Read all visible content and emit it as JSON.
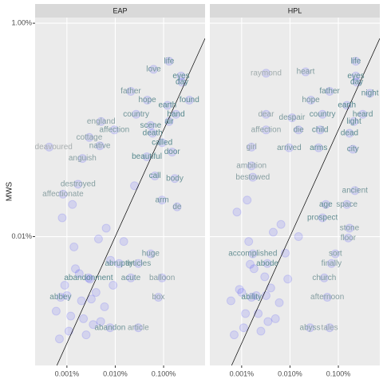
{
  "chart_data": {
    "type": "scatter",
    "y_label": "MWS",
    "log_x": true,
    "log_y": true,
    "grid": true,
    "identity_line": true,
    "point_color": "#0000ff",
    "label_colors": {
      "low": "#52868b",
      "high": "#b5b5b5"
    },
    "xlim": [
      0.00022,
      0.72
    ],
    "ylim": [
      0.00062,
      1.13
    ],
    "xticks": [
      {
        "value": 0.001,
        "label": "0.001%"
      },
      {
        "value": 0.01,
        "label": "0.010%"
      },
      {
        "value": 0.1,
        "label": "0.100%"
      }
    ],
    "yticks": [
      {
        "value": 0.01,
        "label": "0.01%"
      },
      {
        "value": 1,
        "label": "1.00%"
      }
    ],
    "facets": [
      {
        "name": "EAP",
        "labels": [
          "life",
          "love",
          "eyes",
          "day",
          "father",
          "hope",
          "earth",
          "found",
          "country",
          "hand",
          "england",
          "scene",
          "air",
          "affection",
          "death",
          "cottage",
          "called",
          "endeavoured",
          "native",
          "door",
          "anguish",
          "beautiful",
          "affectionate",
          "destroyed",
          "call",
          "body",
          "arm",
          "de",
          "huge",
          "abruptly",
          "articles",
          "abandonment",
          "acute",
          "balloon",
          "abbey",
          "box",
          "abandon",
          "article",
          null,
          null,
          null,
          null,
          null,
          null,
          null,
          null,
          null,
          null,
          null,
          null,
          null,
          null,
          null,
          null,
          null,
          null,
          null,
          null,
          null,
          null,
          null,
          null,
          null,
          null
        ],
        "x": [
          0.13,
          0.062,
          0.23,
          0.24,
          0.021,
          0.046,
          0.12,
          0.34,
          0.027,
          0.18,
          0.0051,
          0.054,
          0.13,
          0.0096,
          0.059,
          0.0029,
          0.093,
          0.00043,
          0.0048,
          0.15,
          0.0021,
          0.045,
          0.00083,
          0.0017,
          0.066,
          0.17,
          0.093,
          0.19,
          0.054,
          0.012,
          0.03,
          0.0028,
          0.021,
          0.093,
          0.00074,
          0.078,
          0.0078,
          0.03,
          0.0006,
          0.0009,
          0.0012,
          0.0015,
          0.002,
          0.0025,
          0.003,
          0.004,
          0.005,
          0.006,
          0.008,
          0.0007,
          0.001,
          0.0014,
          0.0018,
          0.0035,
          0.0045,
          0.0065,
          0.0011,
          0.0022,
          0.0032,
          0.0008,
          0.0013,
          0.009,
          0.015,
          0.025
        ],
        "y": [
          0.44,
          0.37,
          0.32,
          0.28,
          0.23,
          0.19,
          0.17,
          0.19,
          0.14,
          0.14,
          0.12,
          0.11,
          0.12,
          0.1,
          0.093,
          0.085,
          0.076,
          0.069,
          0.071,
          0.062,
          0.054,
          0.056,
          0.025,
          0.031,
          0.037,
          0.035,
          0.022,
          0.019,
          0.0069,
          0.0056,
          0.0056,
          0.0041,
          0.0041,
          0.0041,
          0.0027,
          0.0027,
          0.0014,
          0.0014,
          0.002,
          0.0035,
          0.0018,
          0.005,
          0.0025,
          0.0012,
          0.004,
          0.003,
          0.0016,
          0.0022,
          0.006,
          0.0011,
          0.0028,
          0.008,
          0.0045,
          0.0015,
          0.0095,
          0.012,
          0.0013,
          0.0017,
          0.0026,
          0.015,
          0.02,
          0.0035,
          0.009,
          0.03
        ]
      },
      {
        "name": "HPL",
        "labels": [
          "life",
          "raymond",
          "heart",
          "eyes",
          "day",
          "night",
          "hope",
          "father",
          "earth",
          "dear",
          "despair",
          "country",
          "light",
          "heard",
          "affection",
          "die",
          "child",
          "dead",
          "city",
          "girl",
          "arrived",
          "arms",
          "bestowed",
          "ancient",
          "ambition",
          "age",
          "space",
          "stone",
          "floor",
          "prospect",
          "accomplished",
          "sort",
          "abode",
          "finally",
          "church",
          "ability",
          "afternoon",
          "abyss",
          "tales",
          null,
          null,
          null,
          null,
          null,
          null,
          null,
          null,
          null,
          null,
          null,
          null,
          null,
          null,
          null,
          null,
          null,
          null,
          null,
          null,
          null,
          null,
          null,
          null,
          null
        ],
        "x": [
          0.23,
          0.0032,
          0.021,
          0.23,
          0.24,
          0.45,
          0.027,
          0.066,
          0.15,
          0.0032,
          0.011,
          0.047,
          0.21,
          0.32,
          0.0032,
          0.015,
          0.042,
          0.17,
          0.2,
          0.0016,
          0.0096,
          0.039,
          0.0017,
          0.22,
          0.0016,
          0.055,
          0.15,
          0.17,
          0.16,
          0.047,
          0.0017,
          0.087,
          0.0034,
          0.072,
          0.051,
          0.0016,
          0.059,
          0.026,
          0.066,
          0.0006,
          0.0009,
          0.0012,
          0.0015,
          0.002,
          0.0025,
          0.003,
          0.004,
          0.005,
          0.006,
          0.008,
          0.0007,
          0.001,
          0.0014,
          0.0018,
          0.0035,
          0.0045,
          0.0065,
          0.0011,
          0.0022,
          0.0032,
          0.0008,
          0.0013,
          0.009,
          0.015
        ],
        "y": [
          0.44,
          0.34,
          0.35,
          0.32,
          0.28,
          0.22,
          0.19,
          0.23,
          0.17,
          0.14,
          0.13,
          0.14,
          0.12,
          0.14,
          0.1,
          0.1,
          0.1,
          0.093,
          0.066,
          0.069,
          0.068,
          0.068,
          0.036,
          0.027,
          0.046,
          0.02,
          0.02,
          0.012,
          0.0097,
          0.015,
          0.0069,
          0.0069,
          0.0056,
          0.0056,
          0.0041,
          0.0027,
          0.0027,
          0.0014,
          0.0014,
          0.0025,
          0.0032,
          0.0019,
          0.0055,
          0.0028,
          0.0013,
          0.0042,
          0.0033,
          0.0017,
          0.0024,
          0.007,
          0.0012,
          0.003,
          0.009,
          0.005,
          0.0016,
          0.011,
          0.013,
          0.0014,
          0.0019,
          0.0028,
          0.017,
          0.022,
          0.004,
          0.01
        ]
      }
    ]
  }
}
